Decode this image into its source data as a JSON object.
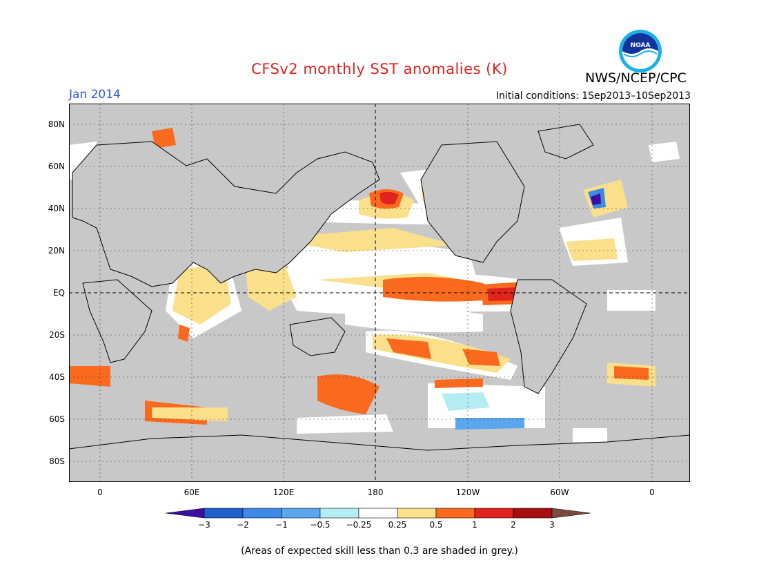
{
  "header": {
    "title": "CFSv2 monthly SST anomalies (K)",
    "agency": "NWS/NCEP/CPC",
    "logo_text": "NOAA",
    "month": "Jan 2014",
    "initial_conditions": "Initial conditions: 1Sep2013–10Sep2013"
  },
  "map": {
    "lat_labels": [
      "80N",
      "60N",
      "40N",
      "20N",
      "EQ",
      "20S",
      "40S",
      "60S",
      "80S"
    ],
    "lon_labels": [
      "0",
      "60E",
      "120E",
      "180",
      "120W",
      "60W",
      "0"
    ],
    "mask_color": "#c8c8c8",
    "land_color": "#c8c8c8"
  },
  "colorbar": {
    "labels": [
      "−3",
      "−2",
      "−1",
      "−0.5",
      "−0.25",
      "0.25",
      "0.5",
      "1",
      "2",
      "3"
    ],
    "colors": [
      "#3c0fa0",
      "#1f5fcc",
      "#3c8ae6",
      "#5aa6ef",
      "#b4ecf4",
      "#ffffff",
      "#fbe08c",
      "#fa6a1e",
      "#e0231c",
      "#a50f10",
      "#7a4a3c"
    ]
  },
  "footnote": "(Areas of expected skill less than 0.3 are shaded in grey.)"
}
